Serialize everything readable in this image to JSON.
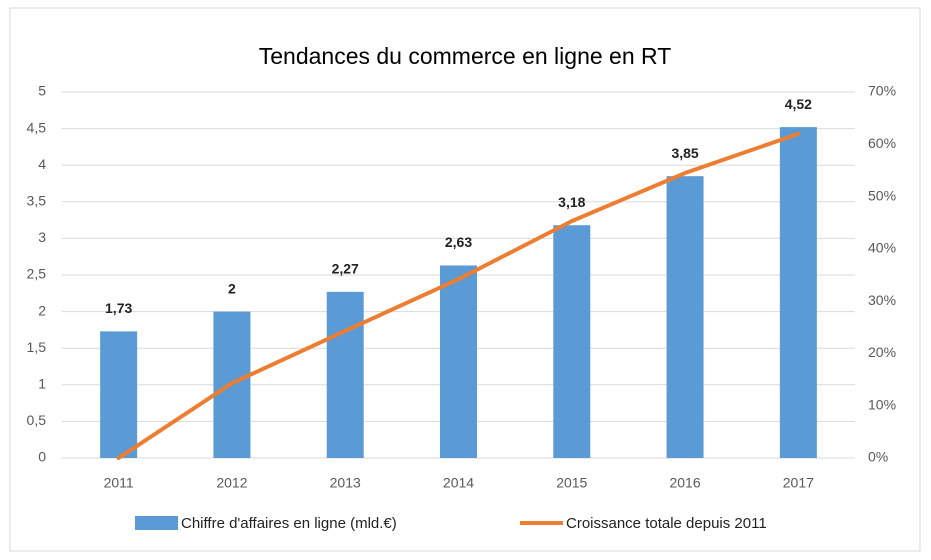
{
  "chart_data": {
    "type": "bar",
    "title": "Tendances du commerce en ligne en RT",
    "categories": [
      "2011",
      "2012",
      "2013",
      "2014",
      "2015",
      "2016",
      "2017"
    ],
    "series": [
      {
        "name": "Chiffre d'affaires  en ligne (mld.€)",
        "color": "#5b9bd5",
        "type": "bar",
        "values": [
          1.73,
          2,
          2.27,
          2.63,
          3.18,
          3.85,
          4.52
        ],
        "value_labels": [
          "1,73",
          "2",
          "2,27",
          "2,63",
          "3,18",
          "3,85",
          "4,52"
        ]
      },
      {
        "name": "Croissance totale depuis 2011",
        "color": "#ed7d31",
        "type": "line",
        "axis": "y2",
        "values": [
          0,
          14.3,
          24.3,
          34.2,
          45.3,
          54.5,
          62
        ]
      }
    ],
    "ylim": [
      0,
      5
    ],
    "yticks": [
      0,
      {
        "value": 0.5,
        "label": "0,5"
      },
      1,
      {
        "value": 1.5,
        "label": "1,5"
      },
      2,
      {
        "value": 2.5,
        "label": "2,5"
      },
      3,
      {
        "value": 3.5,
        "label": "3,5"
      },
      4,
      {
        "value": 4.5,
        "label": "4,5"
      },
      5
    ],
    "y2lim": [
      0,
      70
    ],
    "y2ticks": [
      {
        "value": 0,
        "label": "0%"
      },
      {
        "value": 10,
        "label": "10%"
      },
      {
        "value": 20,
        "label": "20%"
      },
      {
        "value": 30,
        "label": "30%"
      },
      {
        "value": 40,
        "label": "40%"
      },
      {
        "value": 50,
        "label": "50%"
      },
      {
        "value": 60,
        "label": "60%"
      },
      {
        "value": 70,
        "label": "70%"
      }
    ],
    "grid": true,
    "legend": "bottom"
  }
}
